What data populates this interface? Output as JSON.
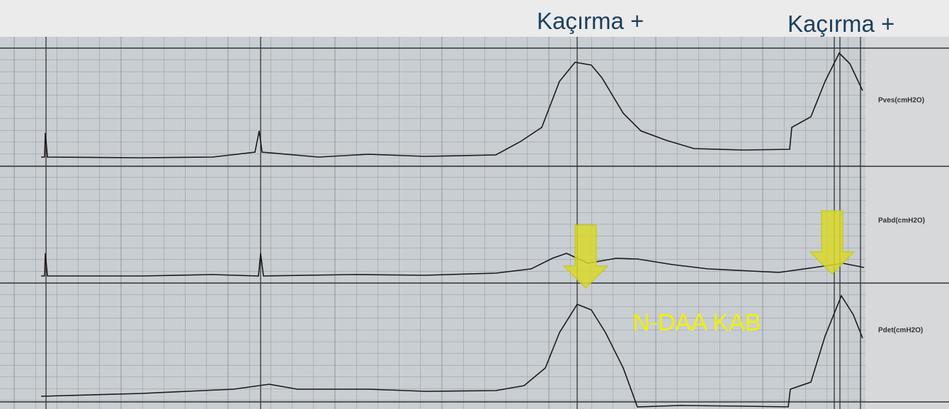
{
  "annotations": {
    "top_left": "Kaçırma +",
    "top_right": "Kaçırma +",
    "middle": "N-DAA KAB"
  },
  "channels": [
    {
      "label": "Pves(cmH2O)"
    },
    {
      "label": "Pabd(cmH2O)"
    },
    {
      "label": "Pdet(cmH2O)"
    }
  ]
}
